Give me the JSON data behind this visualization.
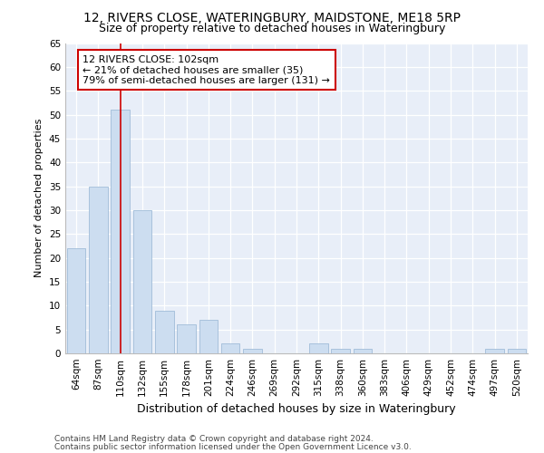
{
  "title1": "12, RIVERS CLOSE, WATERINGBURY, MAIDSTONE, ME18 5RP",
  "title2": "Size of property relative to detached houses in Wateringbury",
  "xlabel": "Distribution of detached houses by size in Wateringbury",
  "ylabel": "Number of detached properties",
  "categories": [
    "64sqm",
    "87sqm",
    "110sqm",
    "132sqm",
    "155sqm",
    "178sqm",
    "201sqm",
    "224sqm",
    "246sqm",
    "269sqm",
    "292sqm",
    "315sqm",
    "338sqm",
    "360sqm",
    "383sqm",
    "406sqm",
    "429sqm",
    "452sqm",
    "474sqm",
    "497sqm",
    "520sqm"
  ],
  "values": [
    22,
    35,
    51,
    30,
    9,
    6,
    7,
    2,
    1,
    0,
    0,
    2,
    1,
    1,
    0,
    0,
    0,
    0,
    0,
    1,
    1
  ],
  "bar_color": "#ccddf0",
  "bar_edge_color": "#a0bcd8",
  "vline_x": 2.0,
  "vline_color": "#cc0000",
  "annotation_text": "12 RIVERS CLOSE: 102sqm\n← 21% of detached houses are smaller (35)\n79% of semi-detached houses are larger (131) →",
  "annotation_box_color": "white",
  "annotation_box_edge_color": "#cc0000",
  "ylim": [
    0,
    65
  ],
  "yticks": [
    0,
    5,
    10,
    15,
    20,
    25,
    30,
    35,
    40,
    45,
    50,
    55,
    60,
    65
  ],
  "bg_color": "#e8eef8",
  "footer1": "Contains HM Land Registry data © Crown copyright and database right 2024.",
  "footer2": "Contains public sector information licensed under the Open Government Licence v3.0.",
  "title1_fontsize": 10,
  "title2_fontsize": 9,
  "xlabel_fontsize": 9,
  "ylabel_fontsize": 8,
  "tick_fontsize": 7.5,
  "footer_fontsize": 6.5,
  "annot_fontsize": 8
}
